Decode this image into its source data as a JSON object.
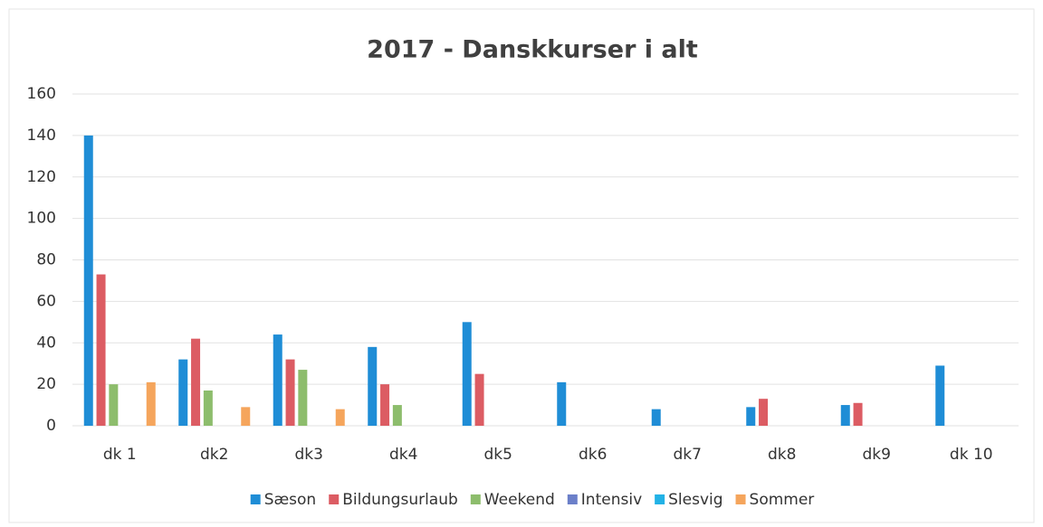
{
  "chart_data": {
    "type": "bar",
    "title": "2017 - Danskkurser i alt",
    "categories": [
      "dk 1",
      "dk2",
      "dk3",
      "dk4",
      "dk5",
      "dk6",
      "dk7",
      "dk8",
      "dk9",
      "dk 10"
    ],
    "series": [
      {
        "name": "Sæson",
        "color": "#1f8dd6",
        "values": [
          140,
          32,
          44,
          38,
          50,
          21,
          8,
          9,
          10,
          29
        ]
      },
      {
        "name": "Bildungsurlaub",
        "color": "#dc5c63",
        "values": [
          73,
          42,
          32,
          20,
          25,
          0,
          0,
          13,
          11,
          0
        ]
      },
      {
        "name": "Weekend",
        "color": "#8dbd6c",
        "values": [
          20,
          17,
          27,
          10,
          0,
          0,
          0,
          0,
          0,
          0
        ]
      },
      {
        "name": "Intensiv",
        "color": "#6b7fc9",
        "values": [
          0,
          0,
          0,
          0,
          0,
          0,
          0,
          0,
          0,
          0
        ]
      },
      {
        "name": "Slesvig",
        "color": "#22b2e6",
        "values": [
          0,
          0,
          0,
          0,
          0,
          0,
          0,
          0,
          0,
          0
        ]
      },
      {
        "name": "Sommer",
        "color": "#f5a55c",
        "values": [
          21,
          9,
          8,
          0,
          0,
          0,
          0,
          0,
          0,
          0
        ]
      }
    ],
    "ylim": [
      0,
      160
    ],
    "yticks": [
      0,
      20,
      40,
      60,
      80,
      100,
      120,
      140,
      160
    ],
    "grid": true,
    "legend": "bottom"
  }
}
